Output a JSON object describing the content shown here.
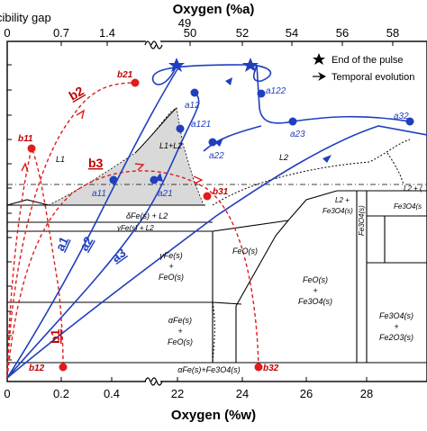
{
  "top_axis": {
    "title": "Oxygen (%a)",
    "corner_label": "cibility gap",
    "ticks_left": [
      "0",
      "0.7",
      "1.4"
    ],
    "ticks_right": [
      "50",
      "52",
      "54",
      "56",
      "58"
    ],
    "tick_49": "49"
  },
  "bottom_axis": {
    "title": "Oxygen (%w)",
    "ticks_left": [
      "0",
      "0.2",
      "0.4"
    ],
    "ticks_right": [
      "22",
      "24",
      "26",
      "28"
    ]
  },
  "legend": {
    "star_label": "End of the pulse",
    "arrow_label": "Temporal evolution"
  },
  "regions": {
    "L1": "L1",
    "L1L2": "L1+L2",
    "L2": "L2",
    "dFe_L2": "δFe(s) + L2",
    "gFe_L2": "γFe(s) + L2",
    "L2_Fe3O4": "L2 +",
    "L2_Fe3O4_b": "Fe3O4(s)",
    "Fe3O4_vert": "Fe3O4(s)",
    "L2_c": "L2 + (",
    "Fe3O4_r": "Fe3O4(s",
    "FeO": "FeO(s)",
    "gFe_FeO_1": "γFe(s)",
    "gFe_FeO_2": "+",
    "gFe_FeO_3": "FeO(s)",
    "FeO_Fe3O4_1": "FeO(s)",
    "FeO_Fe3O4_2": "+",
    "FeO_Fe3O4_3": "Fe3O4(s)",
    "aFe_FeO_1": "αFe(s)",
    "aFe_FeO_2": "+",
    "aFe_FeO_3": "FeO(s)",
    "Fe3O4_Fe2O3_1": "Fe3O4(s)",
    "Fe3O4_Fe2O3_2": "+",
    "Fe3O4_Fe2O3_3": "Fe2O3(s)",
    "aFe_Fe3O4": "αFe(s)+Fe3O4(s)"
  },
  "points_blue": [
    "a11",
    "a12",
    "a121",
    "a122",
    "a21",
    "a22",
    "a23",
    "a32"
  ],
  "points_red": [
    "b11",
    "b12",
    "b21",
    "b31",
    "b32"
  ],
  "path_labels_blue": [
    "a1",
    "a2",
    "a3"
  ],
  "path_labels_red": [
    "b1",
    "b2",
    "b3"
  ],
  "colors": {
    "blue": "#1f3fbf",
    "red": "#e01b1b",
    "miscibility_fill": "#d9d9d9"
  }
}
